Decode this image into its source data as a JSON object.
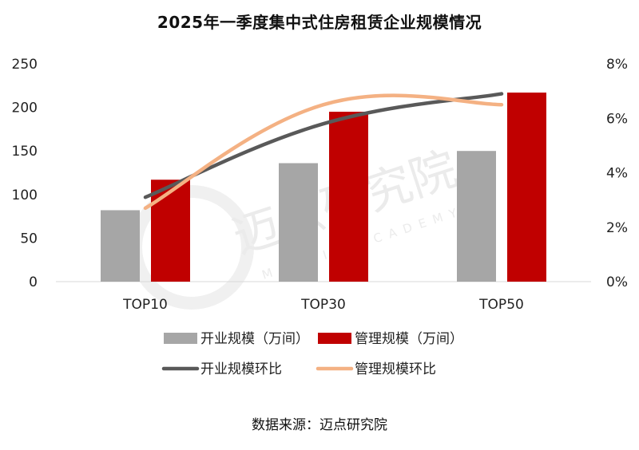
{
  "title": "2025年一季度集中式住房租赁企业规模情况",
  "source": "数据来源：迈点研究院",
  "watermark": {
    "cn": "迈点研究院",
    "en": "MEADIN ACADEMY"
  },
  "colors": {
    "bar_open": "#a6a6a6",
    "bar_manage": "#c00000",
    "line_open": "#595959",
    "line_manage": "#f4b183",
    "axis": "#d9d9d9"
  },
  "chart_data": {
    "type": "bar",
    "categories": [
      "TOP10",
      "TOP30",
      "TOP50"
    ],
    "series": [
      {
        "name": "开业规模（万间）",
        "type": "bar",
        "axis": "left",
        "values": [
          82,
          136,
          150
        ]
      },
      {
        "name": "管理规模（万间）",
        "type": "bar",
        "axis": "left",
        "values": [
          117,
          195,
          217
        ]
      },
      {
        "name": "开业规模环比",
        "type": "line",
        "axis": "right",
        "values": [
          3.1,
          5.8,
          6.9
        ]
      },
      {
        "name": "管理规模环比",
        "type": "line",
        "axis": "right",
        "values": [
          2.7,
          6.5,
          6.5
        ]
      }
    ],
    "y_left": {
      "min": 0,
      "max": 250,
      "ticks": [
        "0",
        "50",
        "100",
        "150",
        "200",
        "250"
      ]
    },
    "y_right": {
      "min": 0,
      "max": 8,
      "ticks": [
        "0%",
        "2%",
        "4%",
        "6%",
        "8%"
      ]
    },
    "legend": {
      "placement": "bottom",
      "items": [
        "开业规模（万间）",
        "管理规模（万间）",
        "开业规模环比",
        "管理规模环比"
      ]
    },
    "grid": false
  }
}
